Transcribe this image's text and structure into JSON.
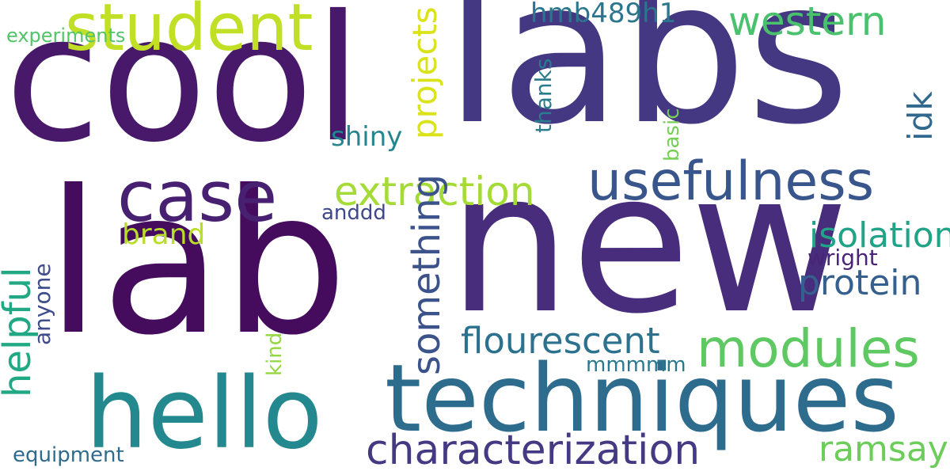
{
  "words": [
    {
      "key": "labs",
      "text": "labs",
      "color": "#453882"
    },
    {
      "key": "new",
      "text": "new",
      "color": "#472d7b"
    },
    {
      "key": "cool",
      "text": "cool",
      "color": "#48186a"
    },
    {
      "key": "lab",
      "text": "lab",
      "color": "#450c5e"
    },
    {
      "key": "techniques",
      "text": "techniques",
      "color": "#2e6c8e"
    },
    {
      "key": "hello",
      "text": "hello",
      "color": "#23898e"
    },
    {
      "key": "student",
      "text": "student",
      "color": "#c0df25"
    },
    {
      "key": "case",
      "text": "case",
      "color": "#482071"
    },
    {
      "key": "usefulness",
      "text": "usefulness",
      "color": "#39568c"
    },
    {
      "key": "modules",
      "text": "modules",
      "color": "#5ec962"
    },
    {
      "key": "extraction",
      "text": "extraction",
      "color": "#a5db36"
    },
    {
      "key": "characterization",
      "text": "characterization",
      "color": "#443a83"
    },
    {
      "key": "western",
      "text": "western",
      "color": "#4ac16d"
    },
    {
      "key": "flourescent",
      "text": "flourescent",
      "color": "#2c728e"
    },
    {
      "key": "isolation",
      "text": "isolation",
      "color": "#22a884"
    },
    {
      "key": "protein",
      "text": "protein",
      "color": "#3b528b"
    },
    {
      "key": "brand",
      "text": "brand",
      "color": "#20a386"
    },
    {
      "key": "ramsay",
      "text": "ramsay",
      "color": "#35608d"
    },
    {
      "key": "hmb489h1",
      "text": "hmb489h1",
      "color": "#b8de29"
    },
    {
      "key": "wright",
      "text": "wright",
      "color": "#dae319"
    },
    {
      "key": "shiny",
      "text": "shiny",
      "color": "#31688e"
    },
    {
      "key": "anddd",
      "text": "anddd",
      "color": "#6ccd5a"
    },
    {
      "key": "mmmmm",
      "text": "mmmmm",
      "color": "#2a768e"
    },
    {
      "key": "equipment",
      "text": "equipment",
      "color": "#482576"
    },
    {
      "key": "experiments",
      "text": "experiments",
      "color": "#3e4c8a"
    },
    {
      "key": "helpful",
      "text": "helpful",
      "color": "#287c8e"
    },
    {
      "key": "something",
      "text": "something",
      "color": "#75d054"
    },
    {
      "key": "projects",
      "text": "projects",
      "color": "#93d741"
    },
    {
      "key": "idk",
      "text": "idk",
      "color": "#24868e"
    },
    {
      "key": "anyone",
      "text": "anyone",
      "color": "#3f4889"
    },
    {
      "key": "thanks",
      "text": "thanks",
      "color": "#2a788e"
    },
    {
      "key": "basic",
      "text": "basic",
      "color": "#2f6b8e"
    },
    {
      "key": "kind",
      "text": "kind",
      "color": "#52c569"
    }
  ]
}
